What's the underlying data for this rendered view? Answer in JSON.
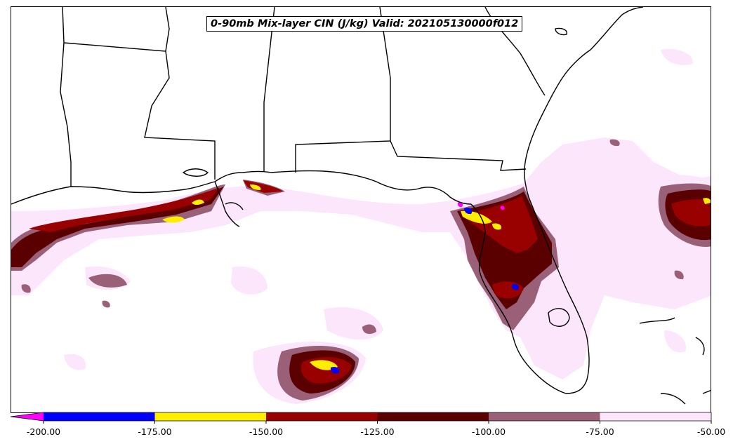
{
  "title": "0-90mb Mix-layer CIN (J/kg) Valid: 202105130000f012",
  "colorbar": {
    "extend": "min",
    "ticks": [
      "-200.00",
      "-175.00",
      "-150.00",
      "-125.00",
      "-100.00",
      "-75.00",
      "-50.00"
    ],
    "bins": [
      {
        "from": -225,
        "to": -200,
        "color": "#ff00ff"
      },
      {
        "from": -200,
        "to": -175,
        "color": "#0000ff"
      },
      {
        "from": -175,
        "to": -150,
        "color": "#ffee00"
      },
      {
        "from": -150,
        "to": -125,
        "color": "#990000"
      },
      {
        "from": -125,
        "to": -100,
        "color": "#5a0000"
      },
      {
        "from": -100,
        "to": -75,
        "color": "#996077"
      },
      {
        "from": -75,
        "to": -50,
        "color": "#fce6fc"
      }
    ]
  },
  "colors": {
    "coastline": "#000000",
    "background": "#ffffff"
  }
}
